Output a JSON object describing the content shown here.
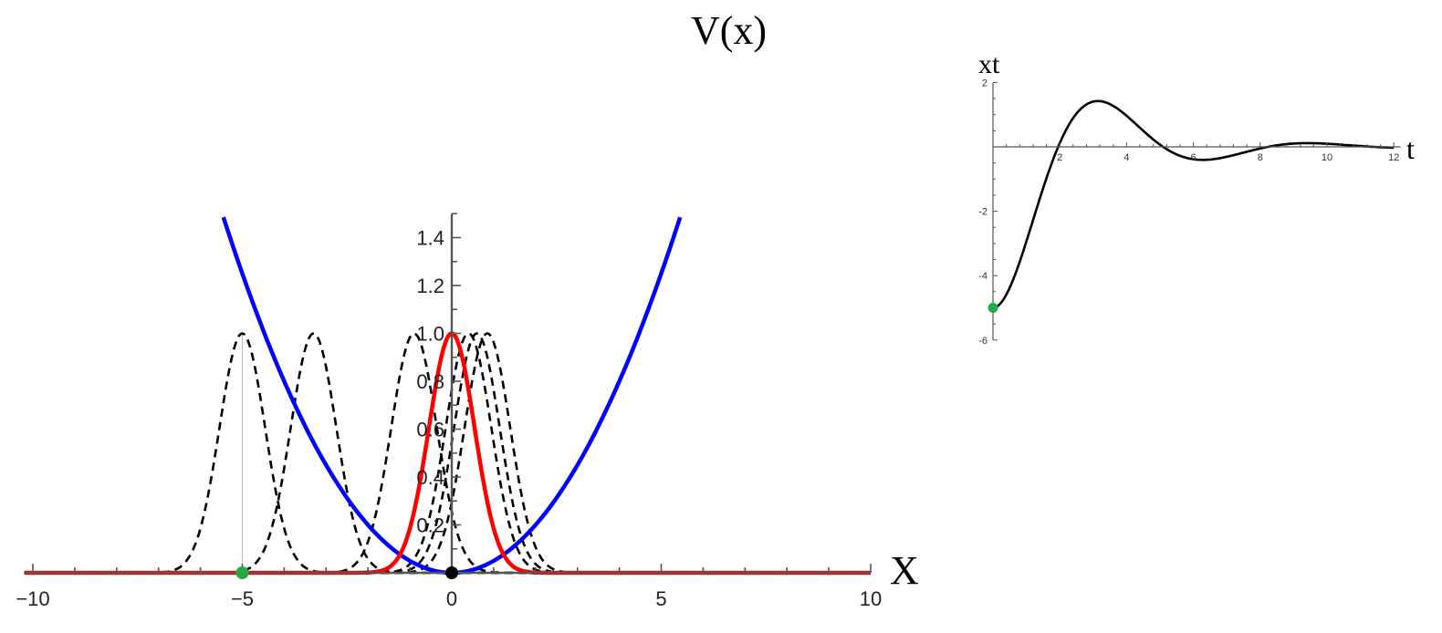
{
  "chart_data": [
    {
      "type": "line",
      "xlabel": "X",
      "ylabel": "V(x)",
      "xlim": [
        -10.2,
        10
      ],
      "ylim": [
        0,
        1.5
      ],
      "x_ticks": [
        -10,
        -5,
        0,
        5,
        10
      ],
      "x_tick_labels": [
        "−10",
        "−5",
        "0",
        "5",
        "10"
      ],
      "y_ticks": [
        0.2,
        0.4,
        0.6,
        0.8,
        1.0,
        1.2,
        1.4
      ],
      "y_tick_labels": [
        "0.2",
        "0.4",
        "0.6",
        "0.8",
        "1.0",
        "1.2",
        "1.4"
      ],
      "grid": false,
      "series": [
        {
          "kind": "potential",
          "formula": "0.05*x^2",
          "color": "#0000ff",
          "style": "solid"
        },
        {
          "kind": "gaussian",
          "center": 0,
          "width": 0.77,
          "color": "#ff0000",
          "style": "solid"
        },
        {
          "kind": "gaussian",
          "center": -5,
          "width": 0.77,
          "color": "#000000",
          "style": "dashed"
        },
        {
          "kind": "gaussian",
          "center": -3.3,
          "width": 0.77,
          "color": "#000000",
          "style": "dashed"
        },
        {
          "kind": "gaussian",
          "center": -0.9,
          "width": 0.77,
          "color": "#000000",
          "style": "dashed"
        },
        {
          "kind": "gaussian",
          "center": 0.4,
          "width": 0.77,
          "color": "#000000",
          "style": "dashed"
        },
        {
          "kind": "gaussian",
          "center": 0.6,
          "width": 0.77,
          "color": "#000000",
          "style": "dashed"
        },
        {
          "kind": "gaussian",
          "center": 0.85,
          "width": 0.77,
          "color": "#000000",
          "style": "dashed"
        }
      ],
      "markers": [
        {
          "x": -5,
          "y": 0,
          "color": "#22aa44"
        },
        {
          "x": 0,
          "y": 0,
          "color": "#000000"
        }
      ],
      "vertical_guide_x": -5
    },
    {
      "type": "line",
      "xlabel": "t",
      "ylabel": "xt",
      "xlim": [
        0,
        12.2
      ],
      "ylim": [
        -6,
        2
      ],
      "x_ticks": [
        2,
        4,
        6,
        8,
        10,
        12
      ],
      "x_tick_labels": [
        "2",
        "4",
        "6",
        "8",
        "10",
        "12"
      ],
      "y_ticks": [
        2,
        -2,
        -4,
        -6
      ],
      "y_tick_labels": [
        "2",
        "-2",
        "-4",
        "-6"
      ],
      "grid": false,
      "series": [
        {
          "formula": "-5*exp(-0.4*t)*(cos(t)+0.4*sin(t))",
          "t_range": [
            0,
            12
          ],
          "color": "#000000",
          "style": "solid"
        }
      ],
      "markers": [
        {
          "x": 0,
          "y": -5,
          "color": "#22aa44"
        }
      ]
    }
  ],
  "colors": {
    "potential": "#0000ff",
    "initial_packet": "#ff0000",
    "snapshots": "#000000",
    "start_marker": "#22aa44",
    "origin_marker": "#000000",
    "axis": "#555555"
  }
}
